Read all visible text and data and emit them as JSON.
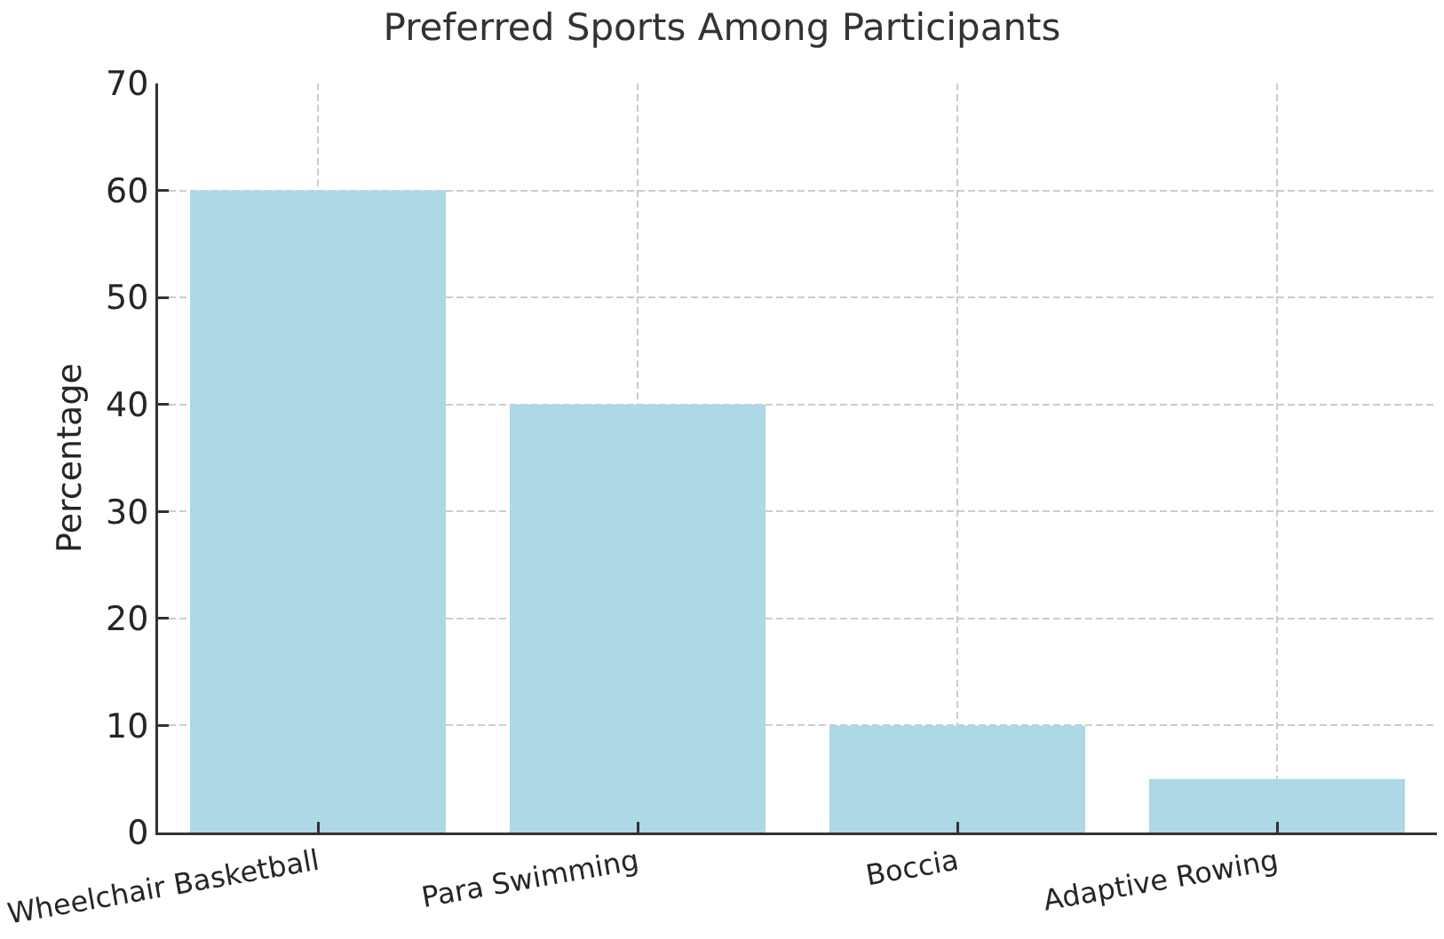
{
  "chart_data": {
    "type": "bar",
    "title": "Preferred Sports Among Participants",
    "ylabel": "Percentage",
    "categories": [
      "Wheelchair Basketball",
      "Para Swimming",
      "Boccia",
      "Adaptive Rowing"
    ],
    "values": [
      60,
      40,
      10,
      5
    ],
    "color": "#add8e6",
    "ylim": [
      0,
      70
    ],
    "yticks": [
      0,
      10,
      20,
      30,
      40,
      50,
      60,
      70
    ],
    "grid": true
  }
}
